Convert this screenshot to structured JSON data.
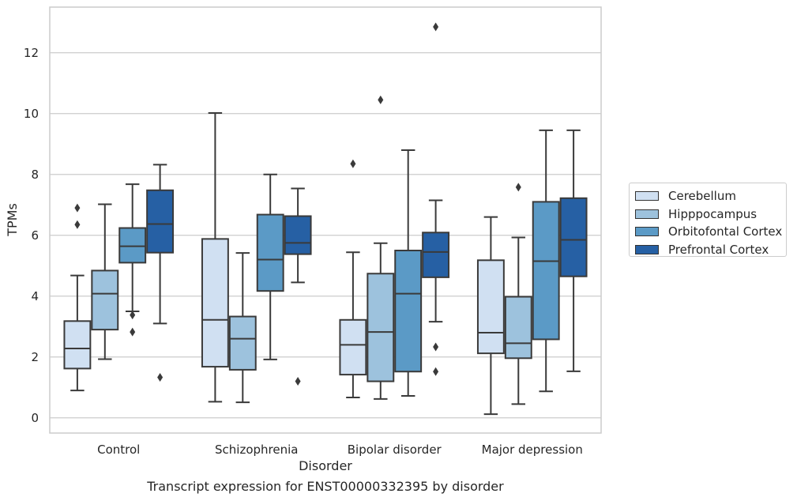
{
  "chart_data": {
    "type": "box",
    "caption": "Transcript expression for ENST00000332395 by disorder",
    "xlabel": "Disorder",
    "ylabel": "TPMs",
    "ylim": [
      -0.5,
      13.5
    ],
    "yticks": [
      0,
      2,
      4,
      6,
      8,
      10,
      12
    ],
    "grid": "horizontal",
    "legend_position": "right",
    "categories": [
      "Control",
      "Schizophrenia",
      "Bipolar disorder",
      "Major depression"
    ],
    "series": [
      {
        "name": "Cerebellum",
        "color": "#d0e0f2",
        "boxes": [
          {
            "whisker_low": 0.9,
            "q1": 1.62,
            "median": 2.28,
            "q3": 3.18,
            "whisker_high": 4.68,
            "outliers": [
              6.9,
              6.35
            ]
          },
          {
            "whisker_low": 0.53,
            "q1": 1.68,
            "median": 3.22,
            "q3": 5.88,
            "whisker_high": 10.02,
            "outliers": []
          },
          {
            "whisker_low": 0.67,
            "q1": 1.42,
            "median": 2.4,
            "q3": 3.22,
            "whisker_high": 5.44,
            "outliers": [
              8.35
            ]
          },
          {
            "whisker_low": 0.12,
            "q1": 2.12,
            "median": 2.8,
            "q3": 5.18,
            "whisker_high": 6.6,
            "outliers": []
          }
        ]
      },
      {
        "name": "Hipppocampus",
        "color": "#9dc2dd",
        "boxes": [
          {
            "whisker_low": 1.93,
            "q1": 2.9,
            "median": 4.08,
            "q3": 4.84,
            "whisker_high": 7.02,
            "outliers": []
          },
          {
            "whisker_low": 0.51,
            "q1": 1.58,
            "median": 2.6,
            "q3": 3.33,
            "whisker_high": 5.42,
            "outliers": []
          },
          {
            "whisker_low": 0.62,
            "q1": 1.2,
            "median": 2.82,
            "q3": 4.74,
            "whisker_high": 5.74,
            "outliers": [
              10.45
            ]
          },
          {
            "whisker_low": 0.45,
            "q1": 1.96,
            "median": 2.45,
            "q3": 3.98,
            "whisker_high": 5.93,
            "outliers": [
              7.58
            ]
          }
        ]
      },
      {
        "name": "Orbitofontal Cortex",
        "color": "#5b9ac6",
        "boxes": [
          {
            "whisker_low": 3.5,
            "q1": 5.1,
            "median": 5.64,
            "q3": 6.24,
            "whisker_high": 7.68,
            "outliers": [
              3.38,
              2.82
            ]
          },
          {
            "whisker_low": 1.92,
            "q1": 4.17,
            "median": 5.2,
            "q3": 6.68,
            "whisker_high": 8.0,
            "outliers": []
          },
          {
            "whisker_low": 0.72,
            "q1": 1.52,
            "median": 4.08,
            "q3": 5.5,
            "whisker_high": 8.8,
            "outliers": []
          },
          {
            "whisker_low": 0.87,
            "q1": 2.58,
            "median": 5.15,
            "q3": 7.1,
            "whisker_high": 9.45,
            "outliers": []
          }
        ]
      },
      {
        "name": "Prefrontal Cortex",
        "color": "#2660a4",
        "boxes": [
          {
            "whisker_low": 3.1,
            "q1": 5.43,
            "median": 6.37,
            "q3": 7.48,
            "whisker_high": 8.32,
            "outliers": [
              1.33
            ]
          },
          {
            "whisker_low": 4.45,
            "q1": 5.38,
            "median": 5.75,
            "q3": 6.63,
            "whisker_high": 7.54,
            "outliers": [
              1.2
            ]
          },
          {
            "whisker_low": 3.16,
            "q1": 4.62,
            "median": 5.45,
            "q3": 6.09,
            "whisker_high": 7.15,
            "outliers": [
              2.33,
              1.52,
              12.85
            ]
          },
          {
            "whisker_low": 1.53,
            "q1": 4.65,
            "median": 5.85,
            "q3": 7.22,
            "whisker_high": 9.45,
            "outliers": []
          }
        ]
      }
    ]
  }
}
